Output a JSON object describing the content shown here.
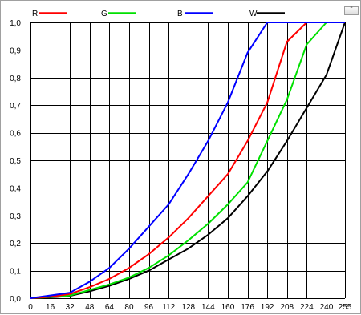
{
  "chart_data": {
    "type": "line",
    "title": "",
    "xlabel": "",
    "ylabel": "",
    "x": [
      0,
      16,
      32,
      48,
      64,
      80,
      96,
      112,
      128,
      144,
      160,
      176,
      192,
      208,
      224,
      240,
      255
    ],
    "xticks": [
      "0",
      "16",
      "32",
      "48",
      "64",
      "80",
      "96",
      "112",
      "128",
      "144",
      "160",
      "176",
      "192",
      "208",
      "224",
      "240",
      "255"
    ],
    "yticks": [
      "0,0",
      "0,1",
      "0,2",
      "0,3",
      "0,4",
      "0,5",
      "0,6",
      "0,7",
      "0,8",
      "0,9",
      "1,0"
    ],
    "xlim": [
      0,
      255
    ],
    "ylim": [
      0,
      1
    ],
    "grid": true,
    "legend_placement": "top",
    "series": [
      {
        "name": "R",
        "color": "#ff0000",
        "values": [
          0,
          0.005,
          0.015,
          0.04,
          0.07,
          0.11,
          0.16,
          0.22,
          0.29,
          0.37,
          0.45,
          0.57,
          0.71,
          0.93,
          1.0,
          1.0,
          1.0
        ]
      },
      {
        "name": "G",
        "color": "#00e000",
        "values": [
          0,
          0.004,
          0.01,
          0.03,
          0.05,
          0.075,
          0.11,
          0.155,
          0.21,
          0.27,
          0.34,
          0.42,
          0.57,
          0.72,
          0.92,
          1.0,
          1.0
        ]
      },
      {
        "name": "B",
        "color": "#0000ff",
        "values": [
          0,
          0.01,
          0.02,
          0.06,
          0.11,
          0.18,
          0.26,
          0.34,
          0.45,
          0.57,
          0.71,
          0.89,
          1.0,
          1.0,
          1.0,
          1.0,
          1.0
        ]
      },
      {
        "name": "W",
        "color": "#000000",
        "values": [
          0,
          0.003,
          0.008,
          0.025,
          0.045,
          0.07,
          0.1,
          0.14,
          0.18,
          0.23,
          0.29,
          0.37,
          0.46,
          0.57,
          0.69,
          0.81,
          1.0
        ]
      }
    ]
  },
  "window": {
    "corner_button_label": "-"
  }
}
